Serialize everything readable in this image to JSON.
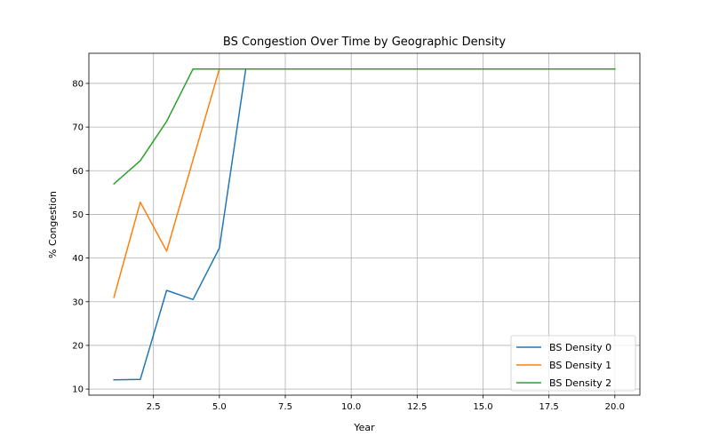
{
  "chart_data": {
    "type": "line",
    "title": "BS Congestion Over Time by Geographic Density",
    "xlabel": "Year",
    "ylabel": "% Congestion",
    "xlim": [
      0.05,
      20.95
    ],
    "ylim": [
      8.6,
      86.9
    ],
    "xticks": [
      2.5,
      5.0,
      7.5,
      10.0,
      12.5,
      15.0,
      17.5,
      20.0
    ],
    "xtick_labels": [
      "2.5",
      "5.0",
      "7.5",
      "10.0",
      "12.5",
      "15.0",
      "17.5",
      "20.0"
    ],
    "yticks": [
      10,
      20,
      30,
      40,
      50,
      60,
      70,
      80
    ],
    "ytick_labels": [
      "10",
      "20",
      "30",
      "40",
      "50",
      "60",
      "70",
      "80"
    ],
    "grid": true,
    "legend_position": "bottom-right",
    "x": [
      1,
      2,
      3,
      4,
      5,
      6,
      7,
      8,
      9,
      10,
      11,
      12,
      13,
      14,
      15,
      16,
      17,
      18,
      19,
      20
    ],
    "series": [
      {
        "name": "BS Density 0",
        "color": "#1f77b4",
        "values": [
          12.1,
          12.2,
          32.6,
          30.5,
          42.3,
          83.3,
          83.3,
          83.3,
          83.3,
          83.3,
          83.3,
          83.3,
          83.3,
          83.3,
          83.3,
          83.3,
          83.3,
          83.3,
          83.3,
          83.3
        ]
      },
      {
        "name": "BS Density 1",
        "color": "#ff7f0e",
        "values": [
          31.0,
          52.8,
          41.6,
          62.5,
          83.3,
          83.3,
          83.3,
          83.3,
          83.3,
          83.3,
          83.3,
          83.3,
          83.3,
          83.3,
          83.3,
          83.3,
          83.3,
          83.3,
          83.3,
          83.3
        ]
      },
      {
        "name": "BS Density 2",
        "color": "#2ca02c",
        "values": [
          57.0,
          62.3,
          71.3,
          83.3,
          83.3,
          83.3,
          83.3,
          83.3,
          83.3,
          83.3,
          83.3,
          83.3,
          83.3,
          83.3,
          83.3,
          83.3,
          83.3,
          83.3,
          83.3,
          83.3
        ]
      }
    ]
  }
}
